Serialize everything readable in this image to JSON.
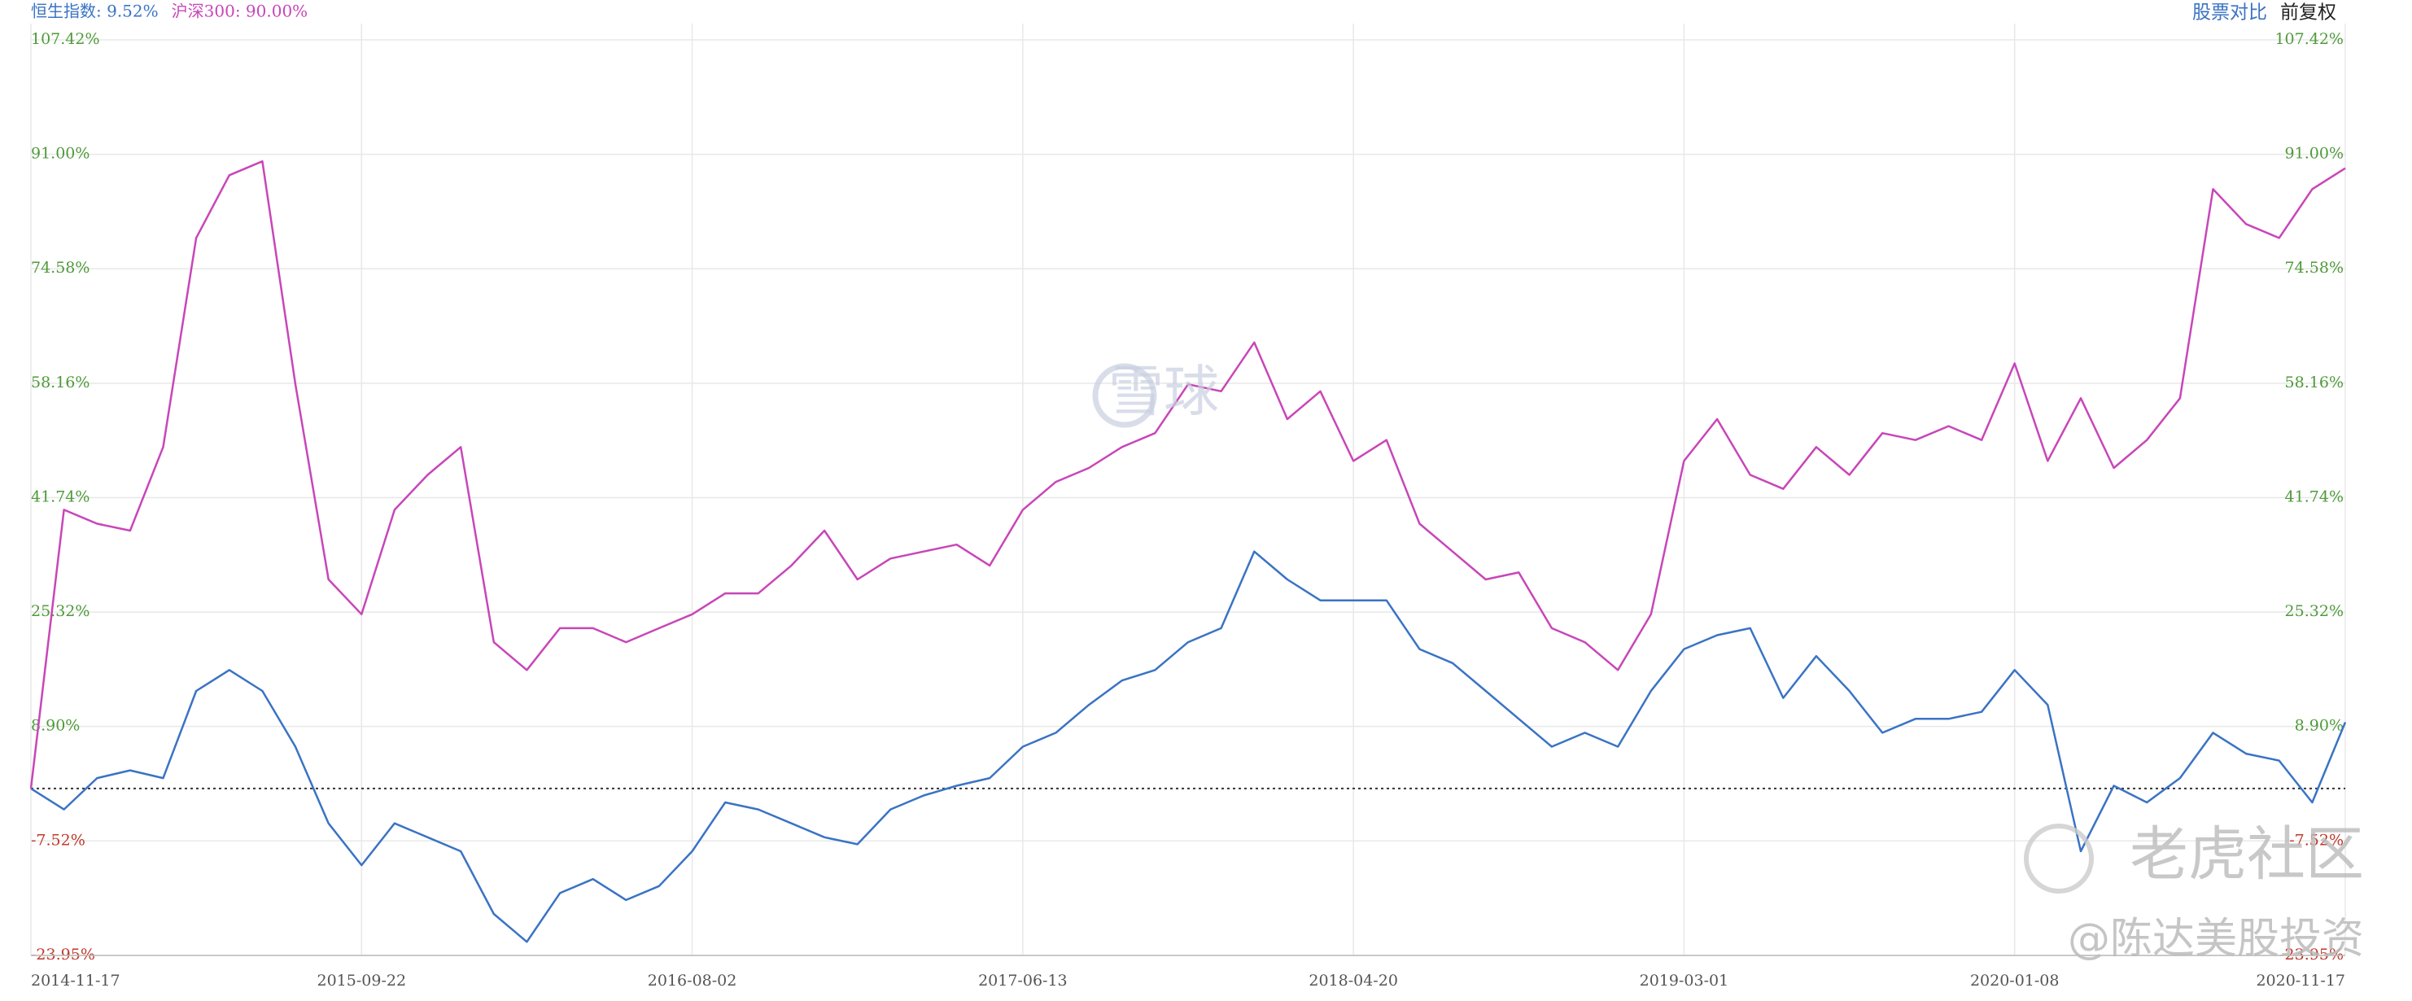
{
  "chart_data": {
    "type": "line",
    "controls": {
      "compare": "股票对比",
      "adjust": "前复权"
    },
    "watermarks": [
      "雪球",
      "老虎社区",
      "@陈达美股投资"
    ],
    "categories": [
      "2014-11-17",
      null,
      null,
      null,
      null,
      null,
      null,
      null,
      null,
      null,
      "2015-09-22",
      null,
      null,
      null,
      null,
      null,
      null,
      null,
      null,
      null,
      "2016-08-02",
      null,
      null,
      null,
      null,
      null,
      null,
      null,
      null,
      null,
      "2017-06-13",
      null,
      null,
      null,
      null,
      null,
      null,
      null,
      null,
      null,
      "2018-04-20",
      null,
      null,
      null,
      null,
      null,
      null,
      null,
      null,
      null,
      "2019-03-01",
      null,
      null,
      null,
      null,
      null,
      null,
      null,
      null,
      null,
      "2020-01-08",
      null,
      null,
      null,
      null,
      null,
      null,
      null,
      null,
      null,
      "2020-11-17"
    ],
    "series": [
      {
        "name": "恒生指数: 9.52%",
        "color": "#3a73c4",
        "values": [
          0,
          -3,
          1.5,
          2.6,
          1.5,
          14,
          17,
          14,
          6,
          -5,
          -11,
          -5,
          -7,
          -9,
          -18,
          -22,
          -15,
          -13,
          -16,
          -14,
          -9,
          -2,
          -3,
          -5,
          -7,
          -8,
          -3,
          -1,
          0.4,
          1.5,
          6,
          8,
          12,
          15.5,
          17,
          21,
          23,
          34,
          30,
          27,
          27,
          27,
          20,
          18,
          14,
          10,
          6,
          8,
          6,
          14,
          20,
          22,
          23,
          13,
          19,
          14,
          8,
          10,
          10,
          11,
          17,
          12,
          -9,
          0.4,
          -2,
          1.5,
          8,
          5,
          4,
          -2,
          9.5
        ]
      },
      {
        "name": "沪深300: 90.00%",
        "color": "#c846b8",
        "values": [
          0,
          40,
          38,
          37,
          49,
          79,
          88,
          90,
          58,
          30,
          25,
          40,
          45,
          49,
          21,
          17,
          23,
          23,
          21,
          23,
          25,
          28,
          28,
          32,
          37,
          30,
          33,
          34,
          35,
          32,
          40,
          44,
          46,
          49,
          51,
          58,
          57,
          64,
          53,
          57,
          47,
          50,
          38,
          34,
          30,
          31,
          23,
          21,
          17,
          25,
          47,
          53,
          45,
          43,
          49,
          45,
          51,
          50,
          52,
          50,
          61,
          47,
          56,
          46,
          50,
          56,
          86,
          81,
          79,
          86,
          89
        ]
      }
    ],
    "ylim": [
      -23.95,
      107.42
    ],
    "yticks": [
      {
        "value": 107.42,
        "label": "107.42%"
      },
      {
        "value": 91,
        "label": "91.00%"
      },
      {
        "value": 74.58,
        "label": "74.58%"
      },
      {
        "value": 58.16,
        "label": "58.16%"
      },
      {
        "value": 41.74,
        "label": "41.74%"
      },
      {
        "value": 25.32,
        "label": "25.32%"
      },
      {
        "value": 8.9,
        "label": "8.90%"
      },
      {
        "value": -7.52,
        "label": "-7.52%"
      },
      {
        "value": -23.95,
        "label": "-23.95%"
      }
    ],
    "baseline": 0,
    "positive_color": "#4f9a3a",
    "negative_color": "#c0392b",
    "grid": true
  }
}
